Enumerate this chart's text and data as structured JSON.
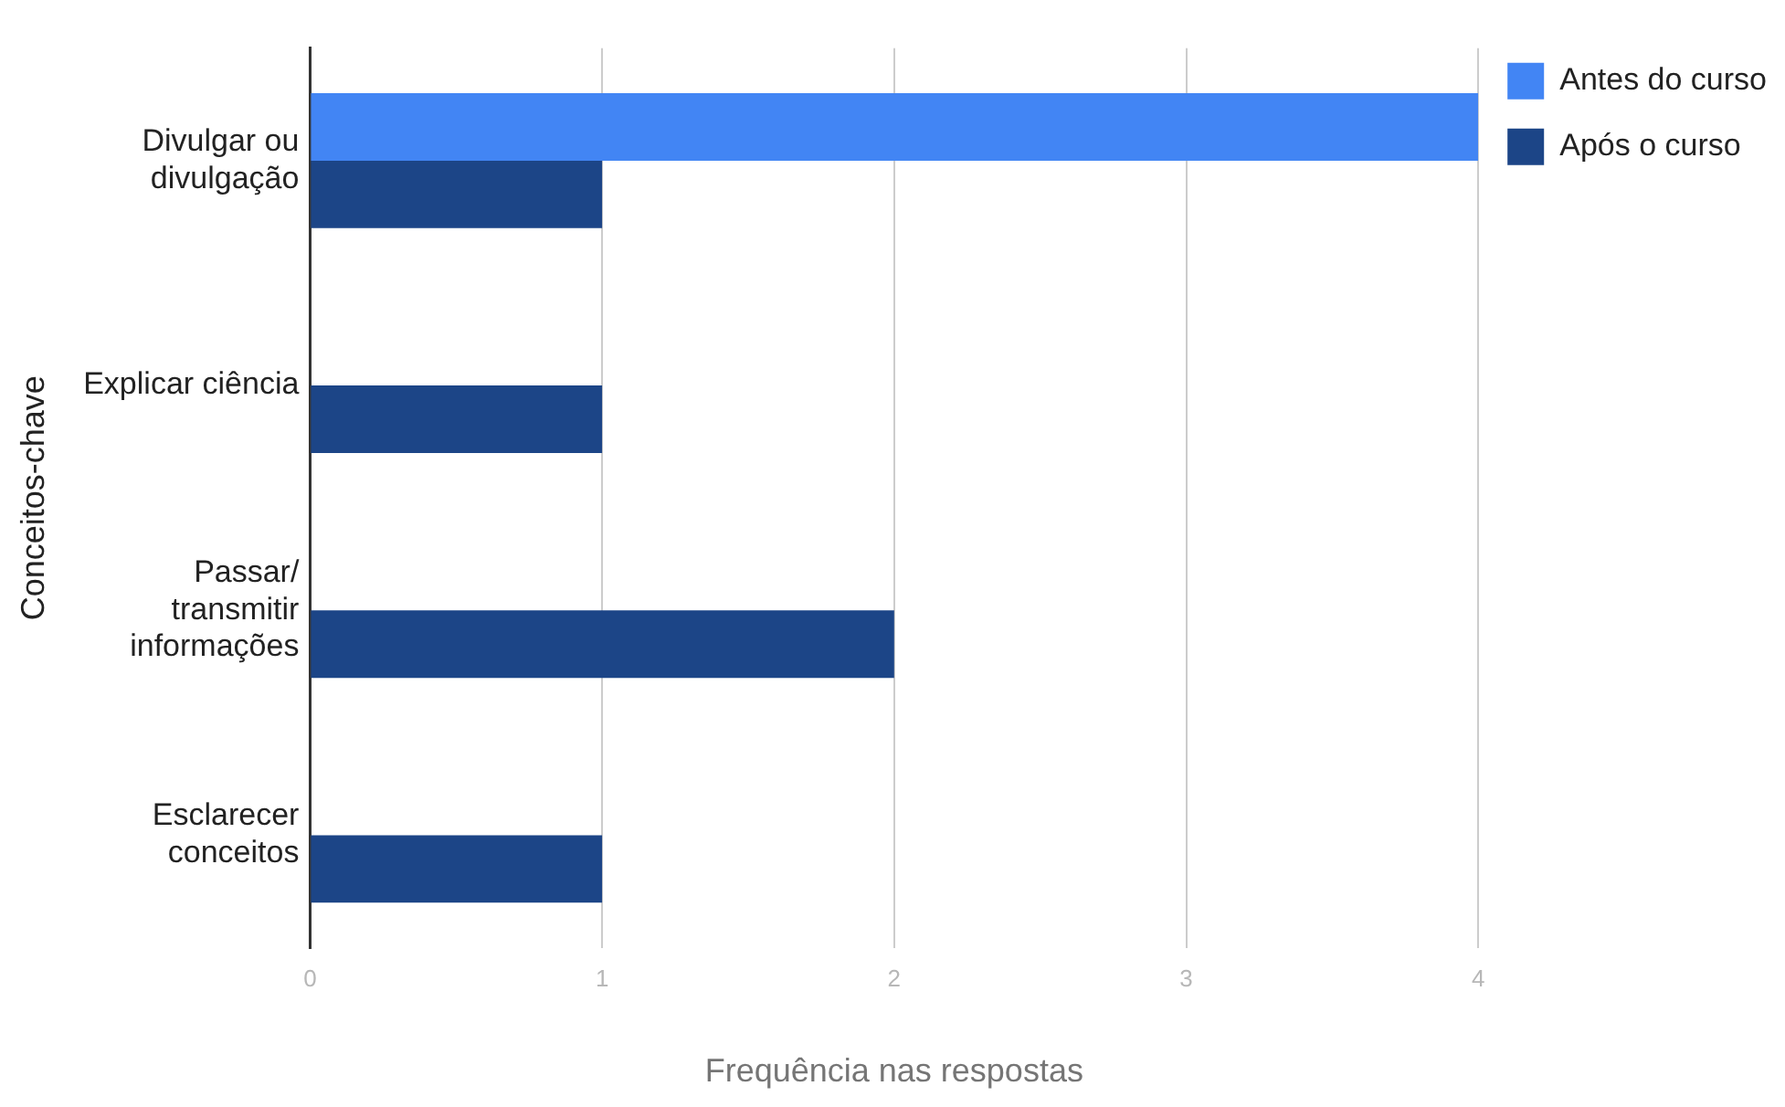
{
  "chart_data": {
    "type": "bar",
    "orientation": "horizontal",
    "xlabel": "Frequência nas respostas",
    "ylabel": "Conceitos-chave",
    "categories": [
      "Divulgar ou\ndivulgação",
      "Explicar ciência",
      "Passar/\ntransmitir\ninformações",
      "Esclarecer\nconceitos"
    ],
    "series": [
      {
        "name": "Antes do curso",
        "color": "#4285f4",
        "values": [
          4,
          0,
          0,
          0
        ]
      },
      {
        "name": "Após o curso",
        "color": "#1c4587",
        "values": [
          1,
          1,
          2,
          1
        ]
      }
    ],
    "xlim": [
      0,
      4
    ],
    "xticks": [
      0,
      1,
      2,
      3,
      4
    ],
    "grid": "x",
    "legend": "top right"
  }
}
